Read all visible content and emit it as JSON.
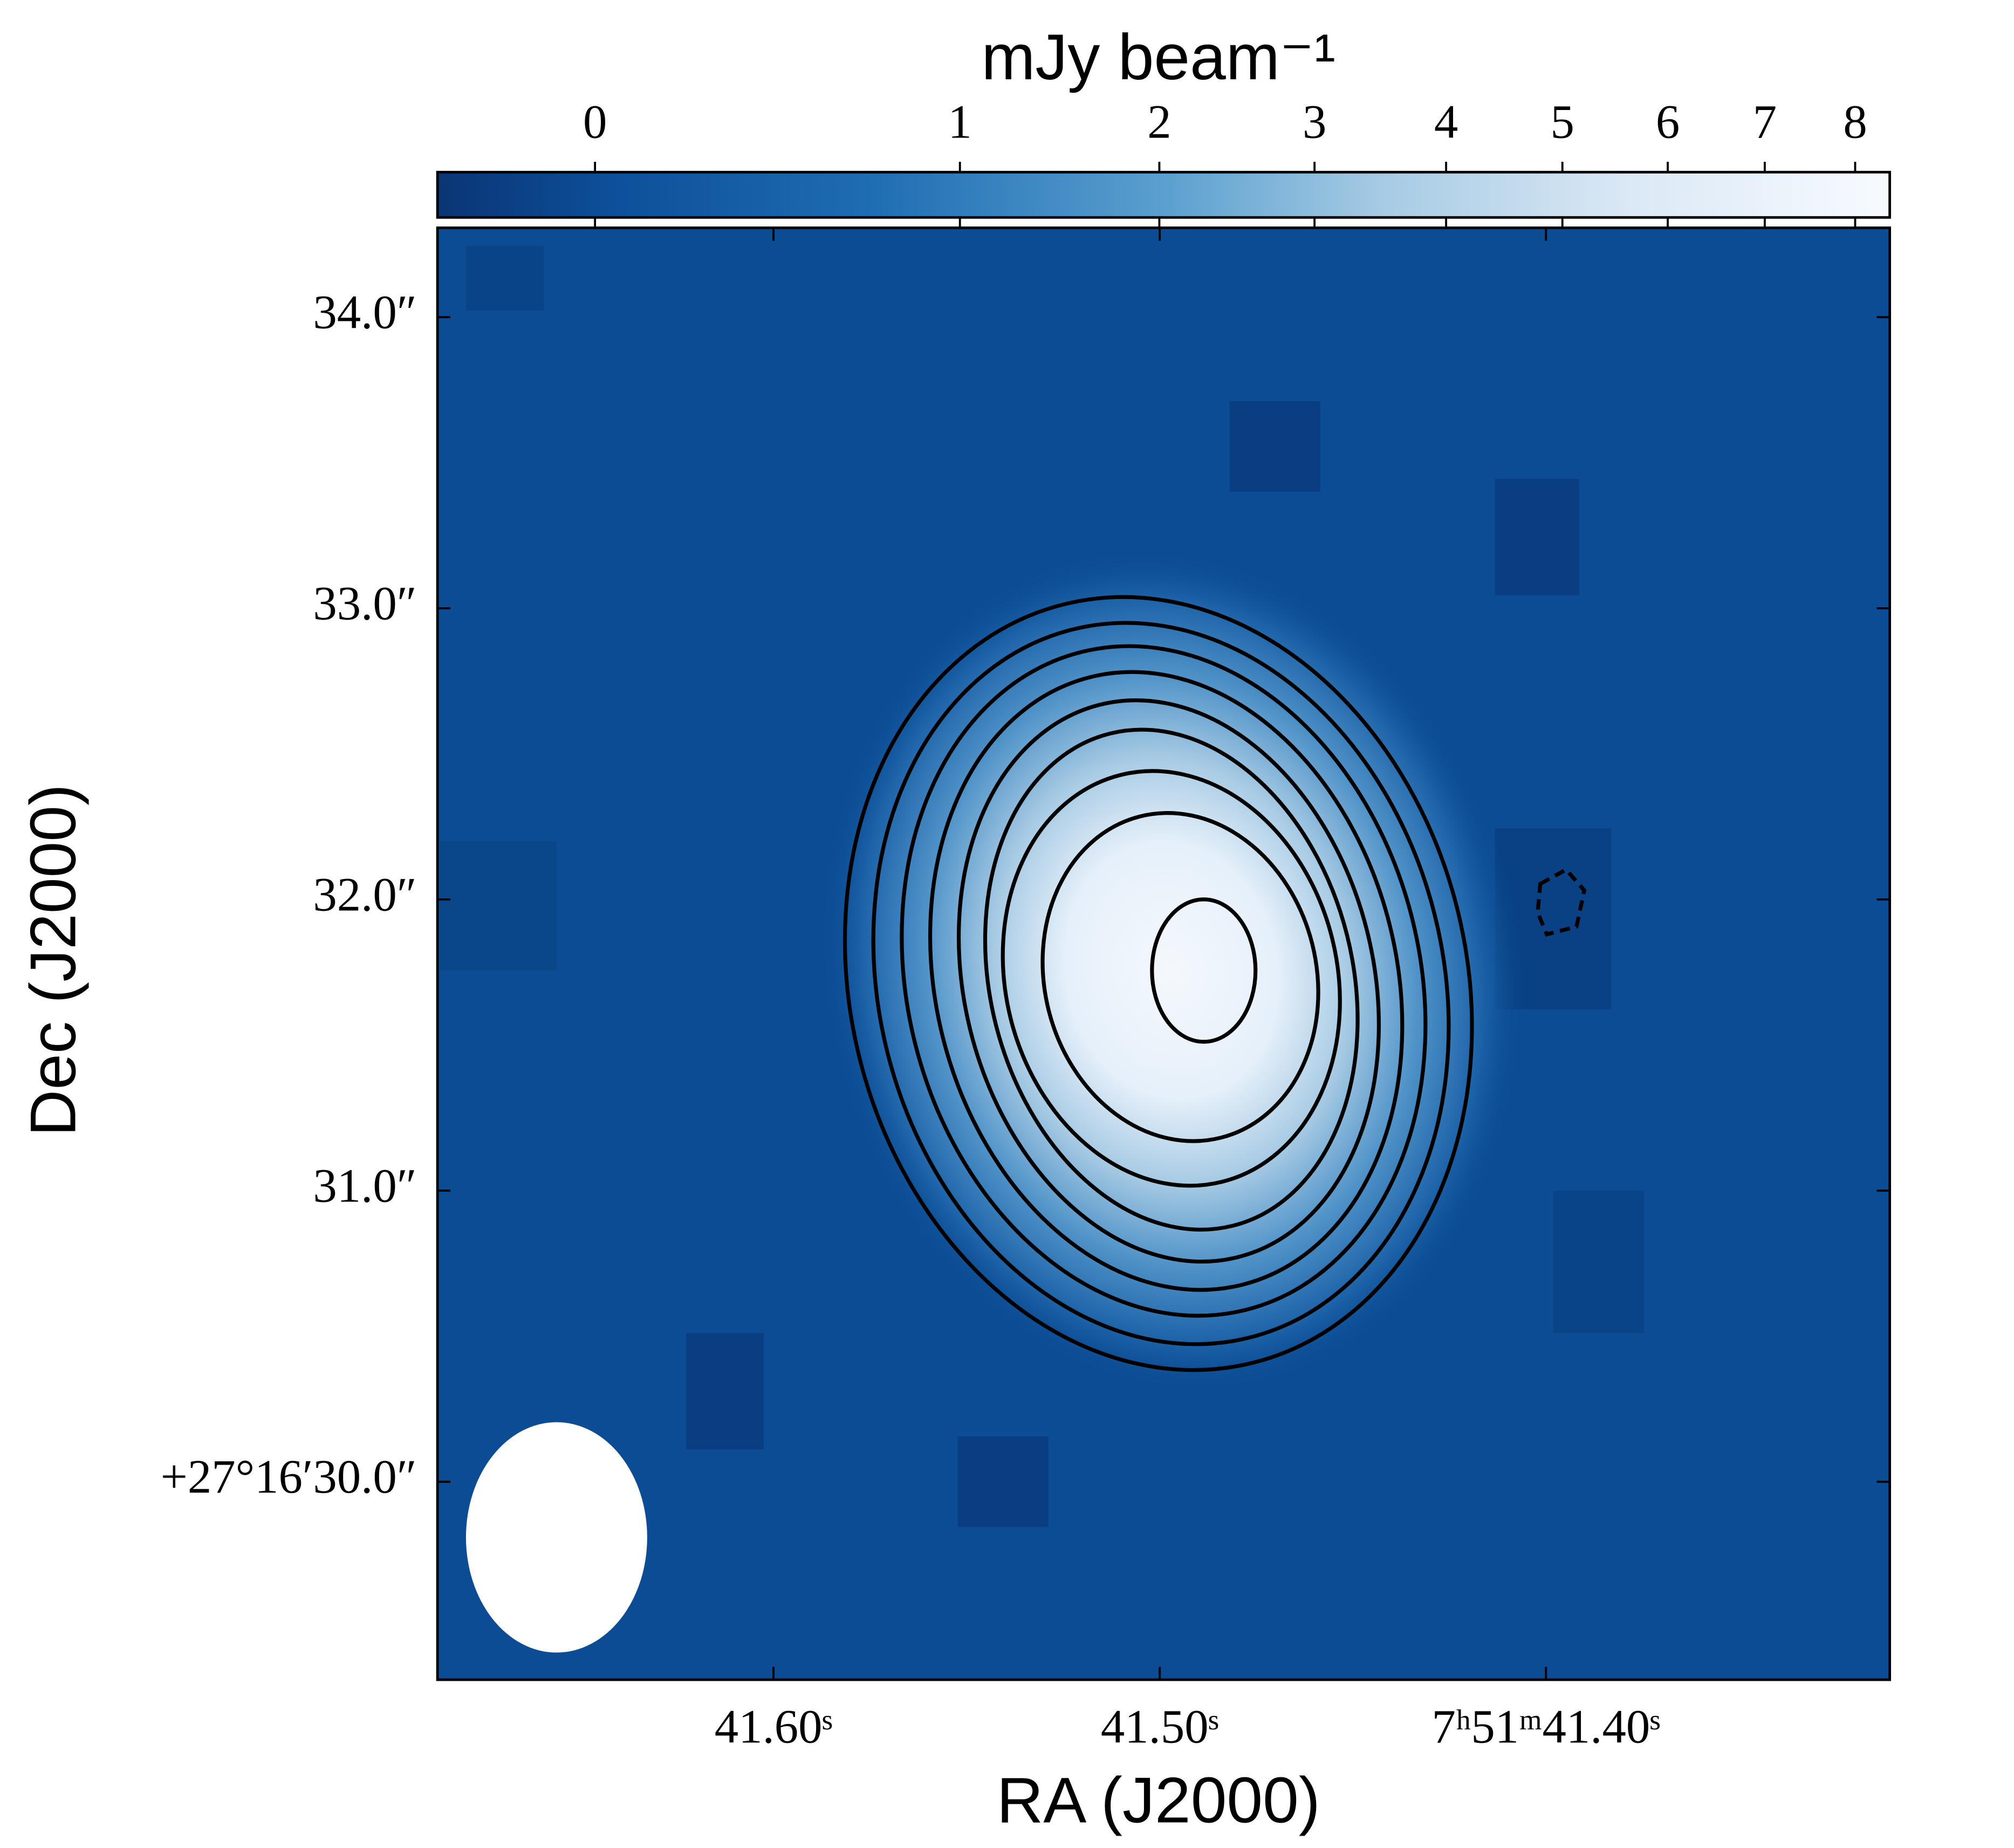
{
  "chart_data": {
    "type": "image",
    "colorbar_label": "mJy beam⁻¹",
    "xlabel": "RA (J2000)",
    "ylabel": "Dec (J2000)",
    "xlim": [
      41.687,
      41.311
    ],
    "ylim": [
      29.32,
      34.307
    ],
    "xticks": [
      {
        "value": 41.6,
        "label": "41.60ˢ"
      },
      {
        "value": 41.5,
        "label": "41.50ˢ"
      },
      {
        "value": 41.4,
        "label": "7ʰ51ᵐ41.40ˢ"
      }
    ],
    "yticks": [
      {
        "value": 30,
        "label": "+27°16′30.0″"
      },
      {
        "value": 31,
        "label": "31.0″"
      },
      {
        "value": 32,
        "label": "32.0″"
      },
      {
        "value": 33,
        "label": "33.0″"
      },
      {
        "value": 34,
        "label": "34.0″"
      }
    ],
    "colorbar": {
      "lim": [
        -0.1,
        8.4
      ],
      "ticks": [
        0,
        1,
        2,
        3,
        4,
        5,
        6,
        7,
        8
      ],
      "stretch": "sqrt"
    }
  }
}
